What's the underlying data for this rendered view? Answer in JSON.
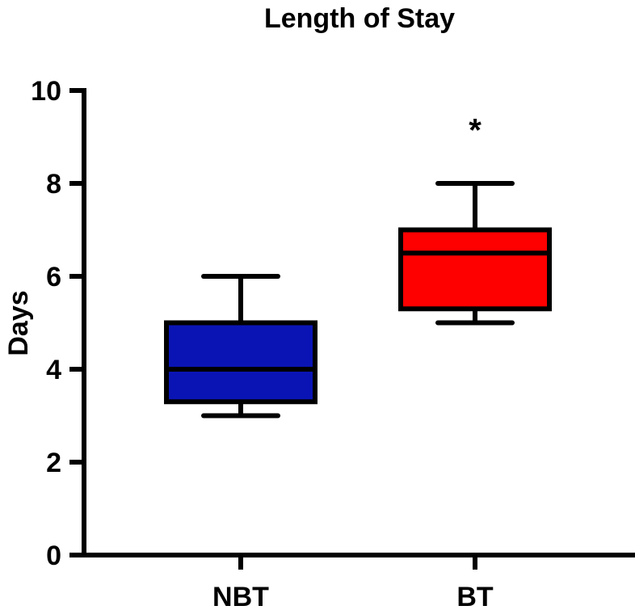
{
  "chart_data": {
    "type": "box",
    "title": "Length of Stay",
    "xlabel": "",
    "ylabel": "Days",
    "ylim": [
      0,
      10
    ],
    "yticks": [
      "0",
      "2",
      "4",
      "6",
      "8",
      "10"
    ],
    "categories": [
      "NBT",
      "BT"
    ],
    "boxes": [
      {
        "category": "NBT",
        "min": 3,
        "q1": 3.3,
        "median": 4.0,
        "q3": 5.0,
        "max": 6,
        "color": "#0a14b4"
      },
      {
        "category": "BT",
        "min": 5,
        "q1": 5.3,
        "median": 6.5,
        "q3": 7.0,
        "max": 8,
        "color": "#ff0000"
      }
    ],
    "annotations": [
      {
        "category": "BT",
        "text": "*",
        "y": 9.3
      }
    ],
    "grid": false
  }
}
